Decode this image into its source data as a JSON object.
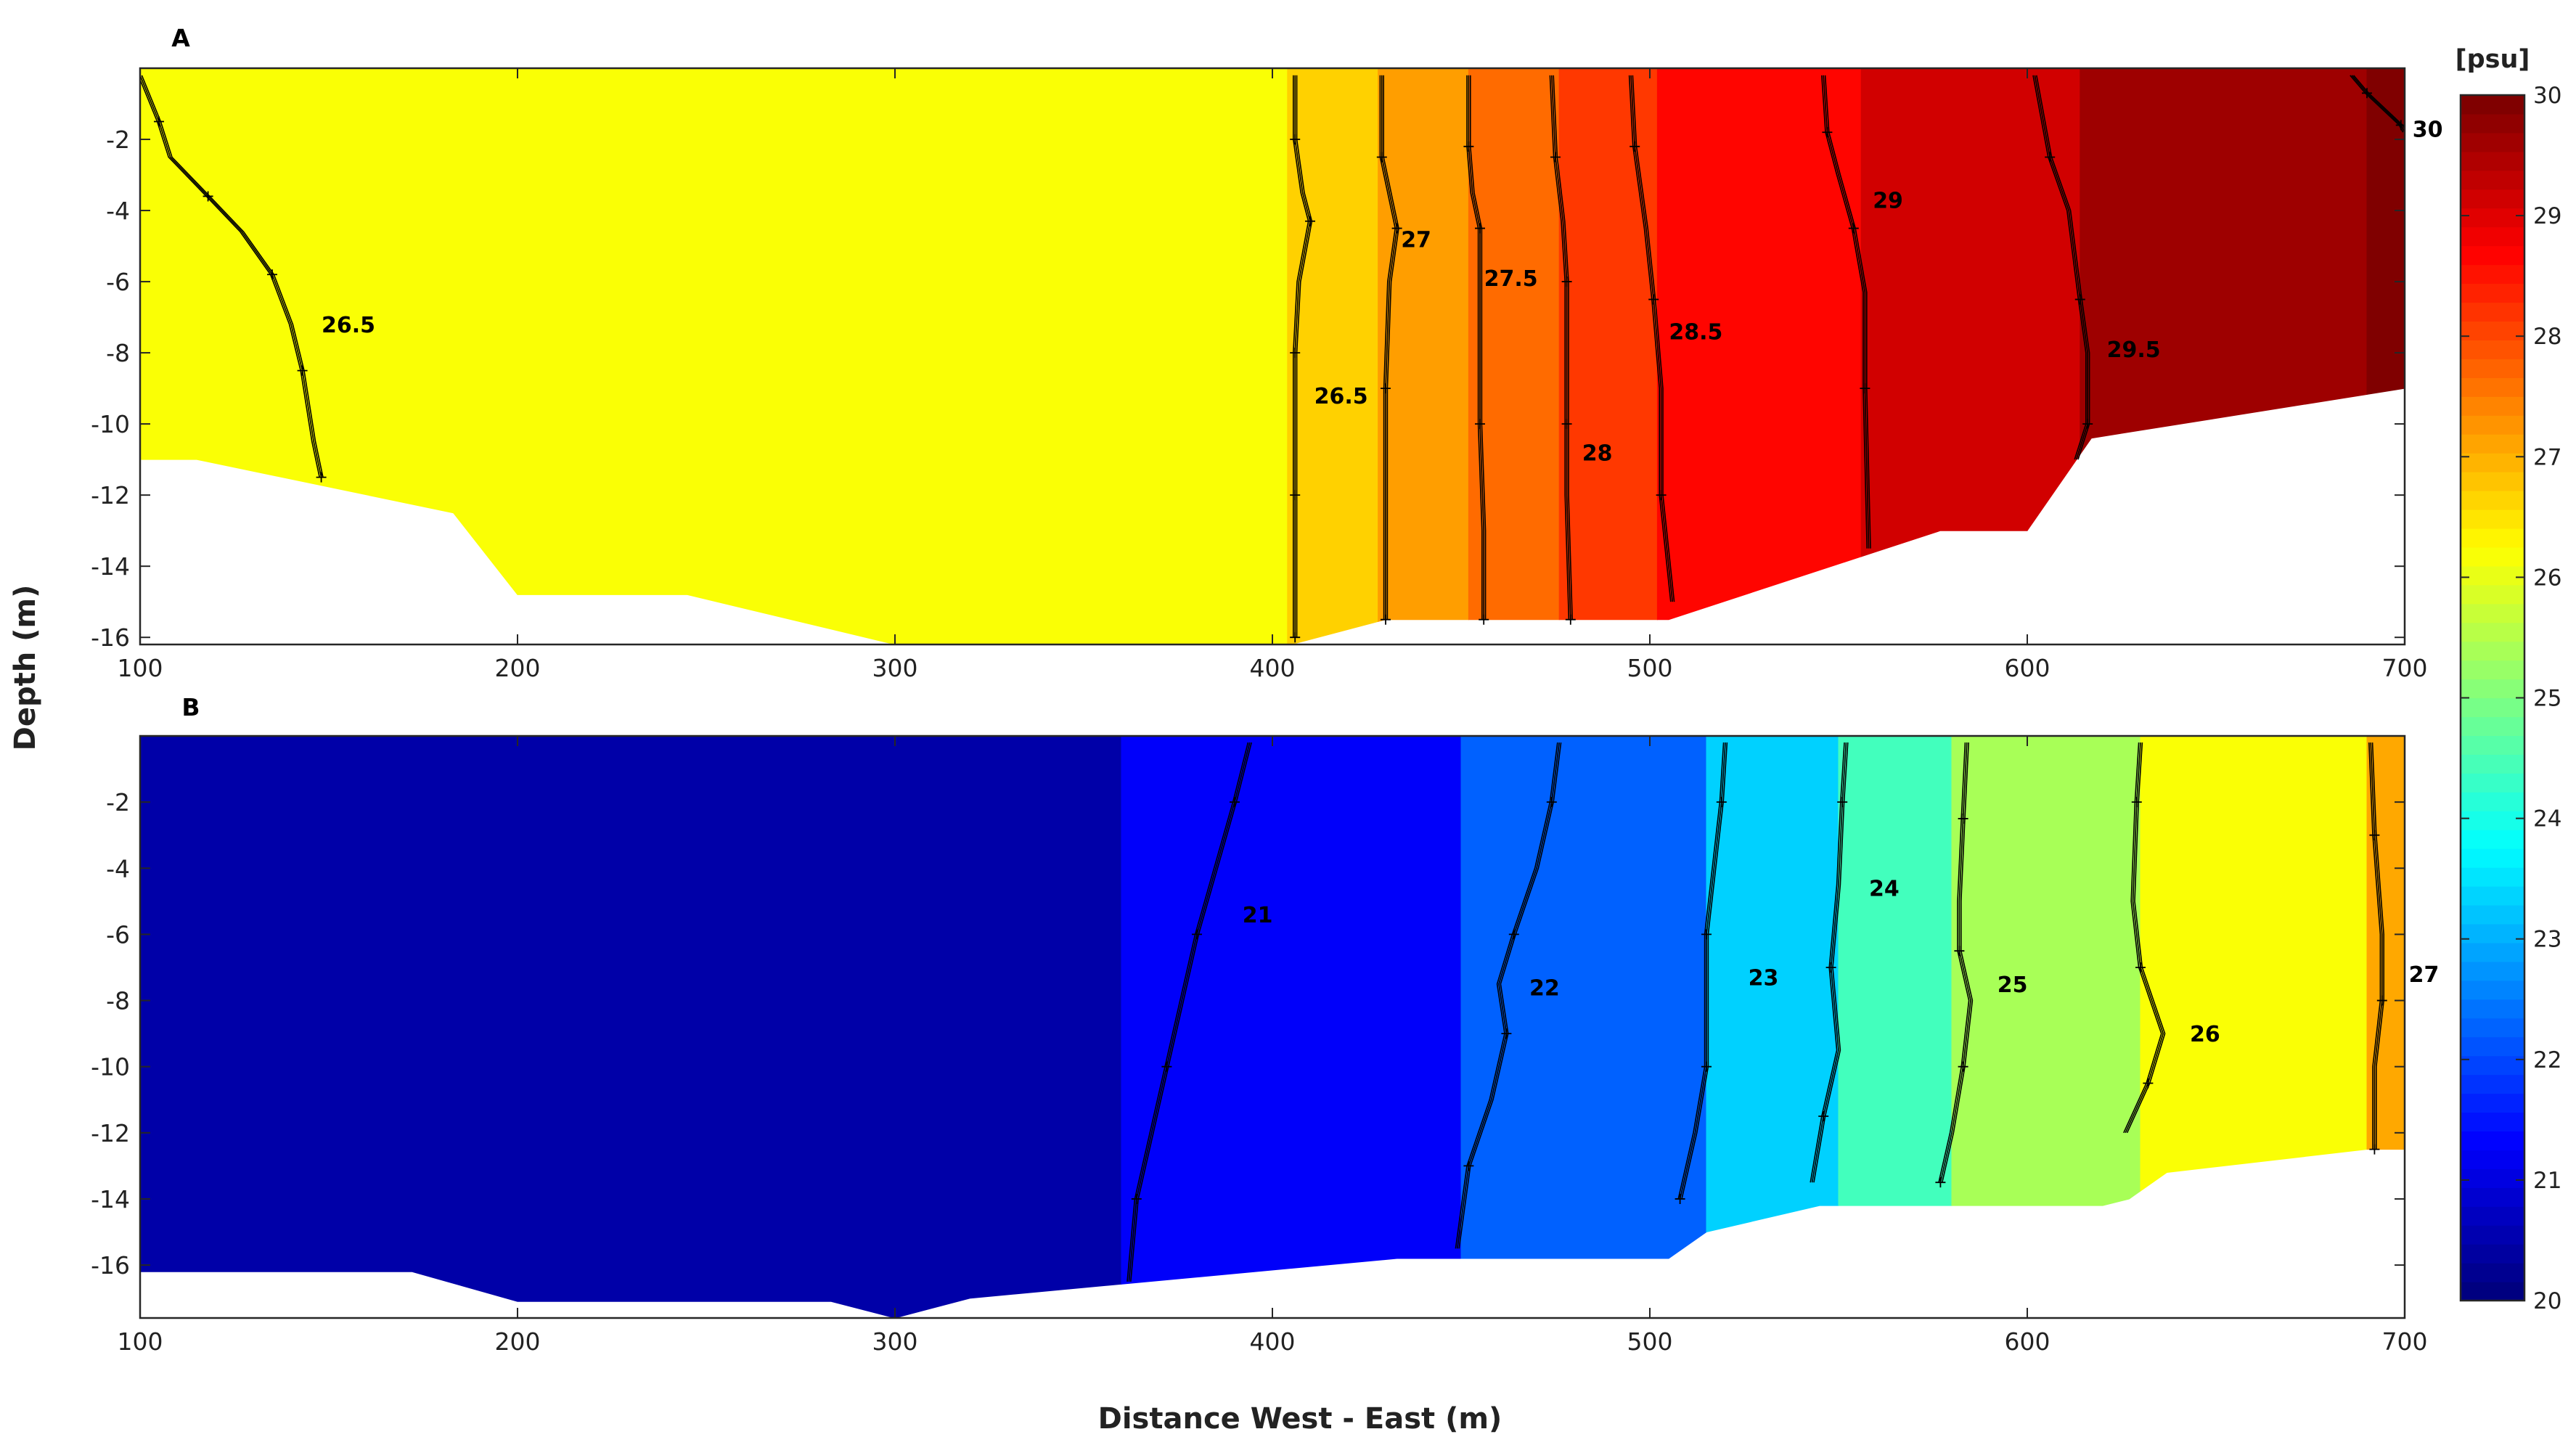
{
  "chart_data": [
    {
      "type": "heatmap",
      "panel": "A",
      "xlabel": "Distance West - East (m)",
      "ylabel": "Depth (m)",
      "xlim": [
        100,
        700
      ],
      "ylim": [
        -16.2,
        0
      ],
      "xticks": [
        100,
        200,
        300,
        400,
        500,
        600,
        700
      ],
      "yticks": [
        -2,
        -4,
        -6,
        -8,
        -10,
        -12,
        -14,
        -16
      ],
      "bottom": [
        [
          100,
          -11
        ],
        [
          115,
          -11
        ],
        [
          183,
          -12.5
        ],
        [
          200,
          -14.8
        ],
        [
          245,
          -14.8
        ],
        [
          300,
          -16.2
        ],
        [
          405,
          -16.2
        ],
        [
          430,
          -15.5
        ],
        [
          505,
          -15.5
        ],
        [
          577,
          -13
        ],
        [
          600,
          -13
        ],
        [
          617,
          -10.4
        ],
        [
          700,
          -9
        ]
      ],
      "fill_bands": [
        {
          "x0": 100,
          "x1": 404,
          "value": 26.2
        },
        {
          "x0": 404,
          "x1": 428,
          "value": 26.7
        },
        {
          "x0": 428,
          "x1": 452,
          "value": 27.2
        },
        {
          "x0": 452,
          "x1": 476,
          "value": 27.7
        },
        {
          "x0": 476,
          "x1": 502,
          "value": 28.2
        },
        {
          "x0": 502,
          "x1": 556,
          "value": 28.7
        },
        {
          "x0": 556,
          "x1": 614,
          "value": 29.2
        },
        {
          "x0": 614,
          "x1": 690,
          "value": 29.7
        },
        {
          "x0": 690,
          "x1": 700,
          "value": 30.0
        }
      ],
      "contours": [
        {
          "label": "26.5",
          "label_at": [
            145,
            -7.2
          ],
          "points": [
            [
              100,
              -0.2
            ],
            [
              105,
              -1.5
            ],
            [
              108,
              -2.5
            ],
            [
              118,
              -3.6
            ],
            [
              127,
              -4.6
            ],
            [
              135,
              -5.8
            ],
            [
              140,
              -7.2
            ],
            [
              143,
              -8.5
            ],
            [
              146,
              -10.5
            ],
            [
              148,
              -11.5
            ]
          ]
        },
        {
          "label": "26.5",
          "label_at": [
            408,
            -9.2
          ],
          "points": [
            [
              406,
              -0.2
            ],
            [
              406,
              -2
            ],
            [
              408,
              -3.5
            ],
            [
              410,
              -4.3
            ],
            [
              407,
              -6
            ],
            [
              406,
              -8
            ],
            [
              406,
              -10
            ],
            [
              406,
              -12
            ],
            [
              406,
              -14
            ],
            [
              406,
              -16
            ]
          ]
        },
        {
          "label": "27",
          "label_at": [
            431,
            -4.8
          ],
          "points": [
            [
              429,
              -0.2
            ],
            [
              429,
              -2.5
            ],
            [
              431,
              -3.5
            ],
            [
              433,
              -4.5
            ],
            [
              431,
              -6
            ],
            [
              430,
              -9
            ],
            [
              430,
              -12
            ],
            [
              430,
              -15.5
            ]
          ]
        },
        {
          "label": "27.5",
          "label_at": [
            453,
            -5.9
          ],
          "points": [
            [
              452,
              -0.2
            ],
            [
              452,
              -2.2
            ],
            [
              453,
              -3.5
            ],
            [
              455,
              -4.5
            ],
            [
              455,
              -7
            ],
            [
              455,
              -10
            ],
            [
              456,
              -13
            ],
            [
              456,
              -15.5
            ]
          ]
        },
        {
          "label": "28",
          "label_at": [
            479,
            -10.8
          ],
          "points": [
            [
              474,
              -0.2
            ],
            [
              475,
              -2.5
            ],
            [
              477,
              -4.3
            ],
            [
              478,
              -6
            ],
            [
              478,
              -8
            ],
            [
              478,
              -10
            ],
            [
              478,
              -12
            ],
            [
              479,
              -15.5
            ]
          ]
        },
        {
          "label": "28.5",
          "label_at": [
            502,
            -7.4
          ],
          "points": [
            [
              495,
              -0.2
            ],
            [
              496,
              -2.2
            ],
            [
              499,
              -4.5
            ],
            [
              501,
              -6.5
            ],
            [
              503,
              -9
            ],
            [
              503,
              -12
            ],
            [
              506,
              -15
            ]
          ]
        },
        {
          "label": "29",
          "label_at": [
            556,
            -3.7
          ],
          "points": [
            [
              546,
              -0.2
            ],
            [
              547,
              -1.8
            ],
            [
              550,
              -3
            ],
            [
              554,
              -4.5
            ],
            [
              557,
              -6.3
            ],
            [
              557,
              -9
            ],
            [
              558,
              -13.5
            ]
          ]
        },
        {
          "label": "29.5",
          "label_at": [
            618,
            -7.9
          ],
          "points": [
            [
              602,
              -0.2
            ],
            [
              606,
              -2.5
            ],
            [
              611,
              -4
            ],
            [
              614,
              -6.5
            ],
            [
              616,
              -8
            ],
            [
              616,
              -10
            ],
            [
              613,
              -11
            ]
          ]
        },
        {
          "label": "30",
          "label_at": [
            699,
            -1.7
          ],
          "points": [
            [
              686,
              -0.2
            ],
            [
              690,
              -0.7
            ],
            [
              695,
              -1.2
            ],
            [
              699,
              -1.6
            ],
            [
              700,
              -1.8
            ]
          ]
        }
      ]
    },
    {
      "type": "heatmap",
      "panel": "B",
      "xlabel": "Distance West - East (m)",
      "ylabel": "Depth (m)",
      "xlim": [
        100,
        700
      ],
      "ylim": [
        -17.6,
        0
      ],
      "xticks": [
        100,
        200,
        300,
        400,
        500,
        600,
        700
      ],
      "yticks": [
        -2,
        -4,
        -6,
        -8,
        -10,
        -12,
        -14,
        -16
      ],
      "bottom": [
        [
          100,
          -16.2
        ],
        [
          172,
          -16.2
        ],
        [
          200,
          -17.1
        ],
        [
          283,
          -17.1
        ],
        [
          300,
          -17.6
        ],
        [
          320,
          -17
        ],
        [
          433,
          -15.8
        ],
        [
          505,
          -15.8
        ],
        [
          515,
          -15
        ],
        [
          545,
          -14.2
        ],
        [
          620,
          -14.2
        ],
        [
          627,
          -14
        ],
        [
          637,
          -13.2
        ],
        [
          690,
          -12.5
        ],
        [
          700,
          -12.5
        ]
      ],
      "fill_bands": [
        {
          "x0": 100,
          "x1": 360,
          "value": 20.4
        },
        {
          "x0": 360,
          "x1": 450,
          "value": 21.2
        },
        {
          "x0": 450,
          "x1": 515,
          "value": 22.2
        },
        {
          "x0": 515,
          "x1": 550,
          "value": 23.3
        },
        {
          "x0": 550,
          "x1": 580,
          "value": 24.4
        },
        {
          "x0": 580,
          "x1": 630,
          "value": 25.4
        },
        {
          "x0": 630,
          "x1": 690,
          "value": 26.2
        },
        {
          "x0": 690,
          "x1": 700,
          "value": 27.1
        }
      ],
      "contours": [
        {
          "label": "21",
          "label_at": [
            389,
            -5.4
          ],
          "points": [
            [
              394,
              -0.2
            ],
            [
              390,
              -2
            ],
            [
              385,
              -4
            ],
            [
              380,
              -6
            ],
            [
              376,
              -8
            ],
            [
              372,
              -10
            ],
            [
              368,
              -12
            ],
            [
              364,
              -14
            ],
            [
              362,
              -16.5
            ]
          ]
        },
        {
          "label": "22",
          "label_at": [
            465,
            -7.6
          ],
          "points": [
            [
              476,
              -0.2
            ],
            [
              474,
              -2
            ],
            [
              470,
              -4
            ],
            [
              464,
              -6
            ],
            [
              460,
              -7.5
            ],
            [
              462,
              -9
            ],
            [
              458,
              -11
            ],
            [
              452,
              -13
            ],
            [
              449,
              -15.5
            ]
          ]
        },
        {
          "label": "23",
          "label_at": [
            523,
            -7.3
          ],
          "points": [
            [
              520,
              -0.2
            ],
            [
              519,
              -2
            ],
            [
              517,
              -4
            ],
            [
              515,
              -6
            ],
            [
              515,
              -8
            ],
            [
              515,
              -10
            ],
            [
              512,
              -12
            ],
            [
              508,
              -14
            ]
          ]
        },
        {
          "label": "24",
          "label_at": [
            555,
            -4.6
          ],
          "points": [
            [
              552,
              -0.2
            ],
            [
              551,
              -2
            ],
            [
              550,
              -4.5
            ],
            [
              548,
              -7
            ],
            [
              550,
              -9.5
            ],
            [
              546,
              -11.5
            ],
            [
              543,
              -13.5
            ]
          ]
        },
        {
          "label": "25",
          "label_at": [
            589,
            -7.5
          ],
          "points": [
            [
              584,
              -0.2
            ],
            [
              583,
              -2.5
            ],
            [
              582,
              -5
            ],
            [
              582,
              -6.5
            ],
            [
              585,
              -8
            ],
            [
              583,
              -10
            ],
            [
              580,
              -12
            ],
            [
              577,
              -13.5
            ]
          ]
        },
        {
          "label": "26",
          "label_at": [
            640,
            -9
          ],
          "points": [
            [
              630,
              -0.2
            ],
            [
              629,
              -2
            ],
            [
              628,
              -5
            ],
            [
              630,
              -7
            ],
            [
              636,
              -9
            ],
            [
              632,
              -10.5
            ],
            [
              626,
              -12
            ]
          ]
        },
        {
          "label": "27",
          "label_at": [
            698,
            -7.2
          ],
          "points": [
            [
              691,
              -0.2
            ],
            [
              692,
              -3
            ],
            [
              694,
              -6
            ],
            [
              694,
              -8
            ],
            [
              692,
              -10
            ],
            [
              692,
              -12.5
            ]
          ]
        }
      ]
    }
  ],
  "colorbar": {
    "label": "[psu]",
    "min": 20,
    "max": 30,
    "ticks": [
      20,
      21,
      22,
      23,
      24,
      25,
      26,
      27,
      28,
      29,
      30
    ],
    "colormap": "jet"
  }
}
